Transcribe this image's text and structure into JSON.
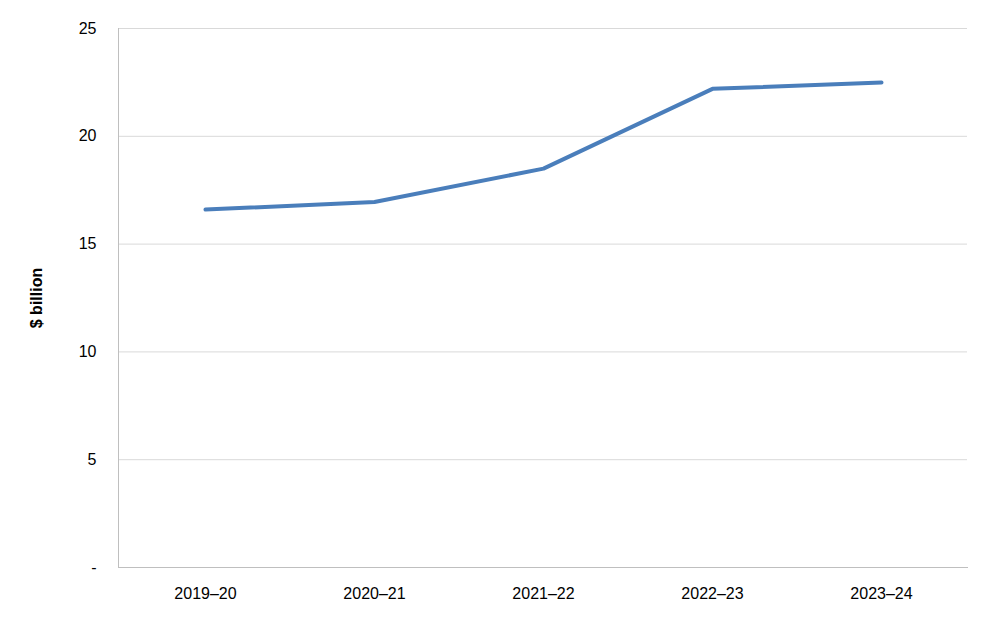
{
  "chart_data": {
    "type": "line",
    "y_label": "$ billion",
    "categories": [
      "2019–20",
      "2020–21",
      "2021–22",
      "2022–23",
      "2023–24"
    ],
    "values": [
      16.6,
      16.95,
      18.5,
      22.2,
      22.5
    ],
    "color": "#4a7ebb",
    "ylim": [
      0,
      25
    ],
    "yticks": [
      {
        "value": 0,
        "label": "-"
      },
      5,
      10,
      15,
      20,
      25
    ],
    "grid": true
  }
}
